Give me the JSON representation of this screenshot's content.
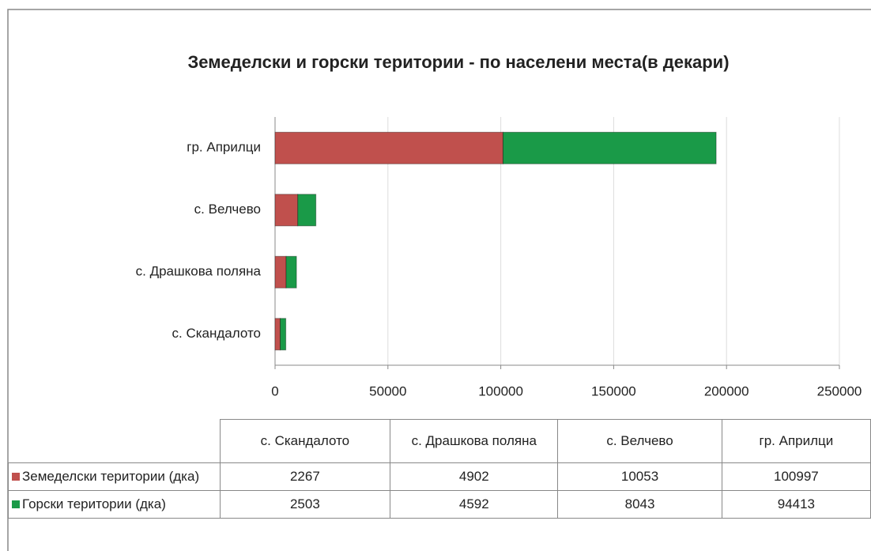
{
  "chart_data": {
    "type": "stacked_barh",
    "title": "Земеделски и горски територии - по населени места(в декари)",
    "categories": [
      "с. Скандалото",
      "с. Драшкова поляна",
      "с. Велчево",
      "гр. Априлци"
    ],
    "series": [
      {
        "name": "Земеделски територии (дка)",
        "color": "#c0504d",
        "values": [
          2267,
          4902,
          10053,
          100997
        ]
      },
      {
        "name": "Горски територии (дка)",
        "color": "#1a9a48",
        "values": [
          2503,
          4592,
          8043,
          94413
        ]
      }
    ],
    "xlim": [
      0,
      250000
    ],
    "xticks": [
      0,
      50000,
      100000,
      150000,
      200000,
      250000
    ],
    "grid": true
  }
}
